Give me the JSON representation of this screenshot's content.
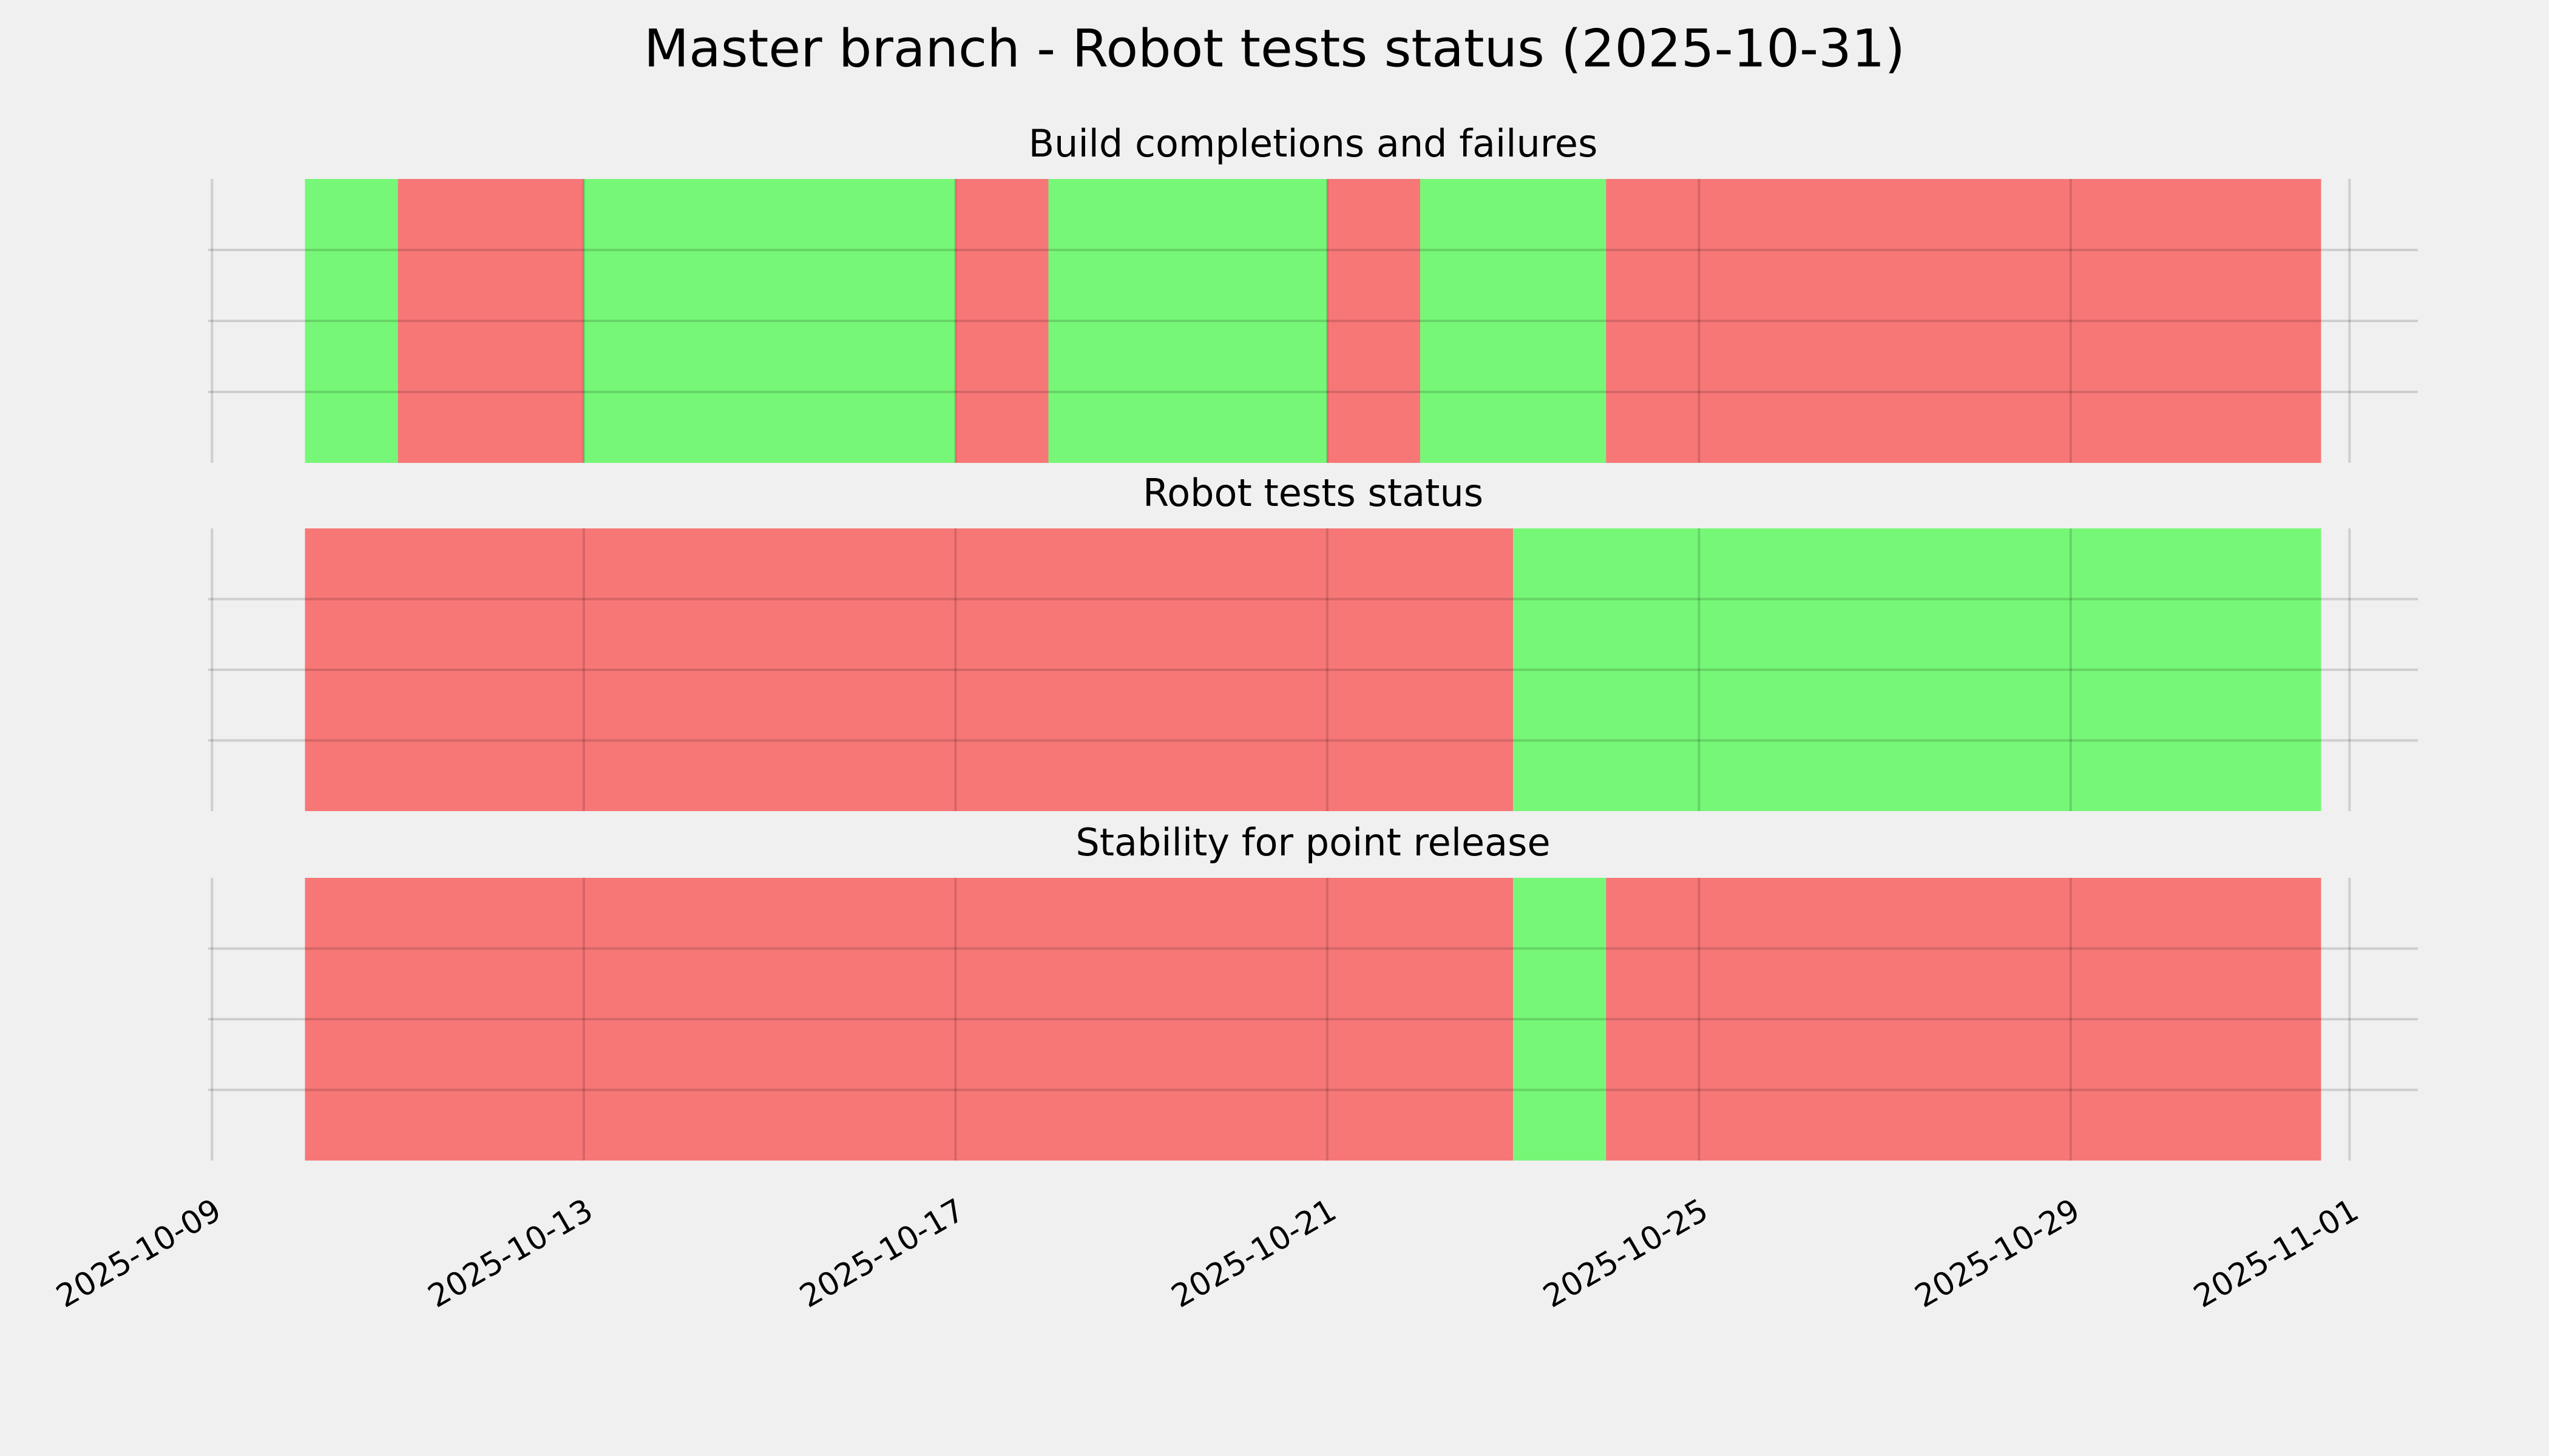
{
  "title": "Master branch - Robot tests status (2025-10-31)",
  "chart_data": [
    {
      "type": "timeline",
      "title": "Build completions and failures",
      "xlim": [
        "2025-10-08T23:00",
        "2025-11-01T17:40"
      ],
      "xticks": [
        "2025-10-09",
        "2025-10-13",
        "2025-10-17",
        "2025-10-21",
        "2025-10-25",
        "2025-10-29",
        "2025-11-01"
      ],
      "ylim": [
        0,
        1
      ],
      "yticks": [
        0.25,
        0.5,
        0.75
      ],
      "grid": true,
      "spans": [
        {
          "start": "2025-10-10",
          "end": "2025-10-11",
          "color": "#77f777"
        },
        {
          "start": "2025-10-11",
          "end": "2025-10-13",
          "color": "#f77777"
        },
        {
          "start": "2025-10-13",
          "end": "2025-10-17",
          "color": "#77f777"
        },
        {
          "start": "2025-10-17",
          "end": "2025-10-18",
          "color": "#f77777"
        },
        {
          "start": "2025-10-18",
          "end": "2025-10-21",
          "color": "#77f777"
        },
        {
          "start": "2025-10-21",
          "end": "2025-10-22",
          "color": "#f77777"
        },
        {
          "start": "2025-10-22",
          "end": "2025-10-24",
          "color": "#77f777"
        },
        {
          "start": "2025-10-24",
          "end": "2025-10-31T16:40",
          "color": "#f77777"
        }
      ]
    },
    {
      "type": "timeline",
      "title": "Robot tests status",
      "xlim": [
        "2025-10-08T23:00",
        "2025-11-01T17:40"
      ],
      "xticks": [
        "2025-10-09",
        "2025-10-13",
        "2025-10-17",
        "2025-10-21",
        "2025-10-25",
        "2025-10-29",
        "2025-11-01"
      ],
      "ylim": [
        0,
        1
      ],
      "yticks": [
        0.25,
        0.5,
        0.75
      ],
      "grid": true,
      "spans": [
        {
          "start": "2025-10-10",
          "end": "2025-10-23",
          "color": "#f77777"
        },
        {
          "start": "2025-10-23",
          "end": "2025-10-31T16:40",
          "color": "#77f777"
        }
      ]
    },
    {
      "type": "timeline",
      "title": "Stability for point release",
      "xlim": [
        "2025-10-08T23:00",
        "2025-11-01T17:40"
      ],
      "xticks": [
        "2025-10-09",
        "2025-10-13",
        "2025-10-17",
        "2025-10-21",
        "2025-10-25",
        "2025-10-29",
        "2025-11-01"
      ],
      "ylim": [
        0,
        1
      ],
      "yticks": [
        0.25,
        0.5,
        0.75
      ],
      "grid": true,
      "spans": [
        {
          "start": "2025-10-10",
          "end": "2025-10-23",
          "color": "#f77777"
        },
        {
          "start": "2025-10-23",
          "end": "2025-10-24",
          "color": "#77f777"
        },
        {
          "start": "2025-10-24",
          "end": "2025-10-31T16:40",
          "color": "#f77777"
        }
      ]
    }
  ]
}
